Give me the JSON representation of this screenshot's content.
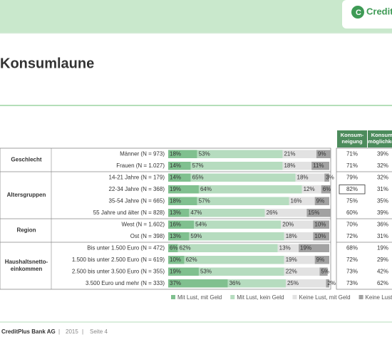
{
  "header": {
    "logo": "CreditPlus"
  },
  "title": "Konsumlaune",
  "chart_data": {
    "type": "bar",
    "orientation": "horizontal",
    "stacked": true,
    "groups": [
      {
        "label": [
          "Geschlecht"
        ],
        "start": 0,
        "count": 2
      },
      {
        "label": [
          "Altersgruppen"
        ],
        "start": 2,
        "count": 4
      },
      {
        "label": [
          "Region"
        ],
        "start": 6,
        "count": 2
      },
      {
        "label": [
          "Haushaltsnetto-",
          "einkommen"
        ],
        "start": 8,
        "count": 4
      }
    ],
    "categories": [
      "Männer (N = 973)",
      "Frauen (N = 1.027)",
      "14-21 Jahre (N = 179)",
      "22-34 Jahre (N = 368)",
      "35-54 Jahre (N = 665)",
      "55 Jahre und älter (N = 828)",
      "West (N = 1.602)",
      "Ost (N = 398)",
      "Bis unter 1.500 Euro (N = 472)",
      "1.500 bis unter 2.500 Euro (N = 619)",
      "2.500 bis unter 3.500 Euro (N = 355)",
      "3.500 Euro und mehr (N = 333)"
    ],
    "xlim": [
      0,
      100
    ],
    "series": [
      {
        "name": "Mit Lust, mit Geld",
        "color": "#80c08f",
        "values": [
          18,
          14,
          14,
          19,
          18,
          13,
          16,
          13,
          6,
          10,
          19,
          37
        ],
        "value_labels": [
          "18%",
          "14%",
          "14%",
          "19%",
          "18%",
          "13%",
          "16%",
          "13%",
          "6%",
          "10%",
          "19%",
          "37%"
        ]
      },
      {
        "name": "Mit Lust, kein Geld",
        "color": "#b6dcbf",
        "values": [
          53,
          57,
          65,
          64,
          57,
          47,
          54,
          59,
          62,
          62,
          53,
          36
        ],
        "value_labels": [
          "53%",
          "57%",
          "65%",
          "64%",
          "57%",
          "47%",
          "54%",
          "59%",
          "62%",
          "62%",
          "53%",
          "36%"
        ]
      },
      {
        "name": "Keine Lust, mit Geld",
        "color": "#e2e2e2",
        "values": [
          21,
          18,
          18,
          12,
          16,
          26,
          20,
          18,
          13,
          19,
          22,
          25
        ],
        "value_labels": [
          "21%",
          "18%",
          "18%",
          "12%",
          "16%",
          "26%",
          "20%",
          "18%",
          "13%",
          "19%",
          "22%",
          "25%"
        ]
      },
      {
        "name": "Keine Lust, kein Geld",
        "color": "#a2a2a2",
        "values": [
          9,
          11,
          3,
          6,
          9,
          15,
          10,
          10,
          19,
          9,
          5,
          2
        ],
        "value_labels": [
          "9%",
          "11%",
          "3%",
          "6%",
          "9%",
          "15%",
          "10%",
          "10%",
          "19%",
          "9%",
          "5%",
          "2%"
        ]
      }
    ]
  },
  "table": {
    "headers": [
      "Konsum-neigung",
      "Konsum-möglichkeit"
    ],
    "rows": [
      [
        "71%",
        "39%"
      ],
      [
        "71%",
        "32%"
      ],
      [
        "79%",
        "32%"
      ],
      [
        "82%",
        "31%"
      ],
      [
        "75%",
        "35%"
      ],
      [
        "60%",
        "39%"
      ],
      [
        "70%",
        "36%"
      ],
      [
        "72%",
        "31%"
      ],
      [
        "68%",
        "19%"
      ],
      [
        "72%",
        "29%"
      ],
      [
        "73%",
        "42%"
      ],
      [
        "73%",
        "62%"
      ]
    ]
  },
  "footer": {
    "company": "CreditPlus Bank AG",
    "year": "2015",
    "page": "Seite 4"
  }
}
